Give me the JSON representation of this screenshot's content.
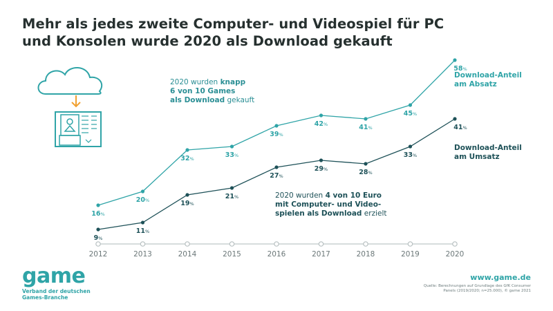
{
  "title": {
    "line1": "Mehr als jedes zweite Computer- und Videospiel für PC",
    "line2": "und Konsolen wurde 2020 als Download gekauft"
  },
  "notes": {
    "games": {
      "line1_pre": "2020 wurden ",
      "line1_bold": "knapp",
      "line2_bold": "6 von 10 Games",
      "line3_bold": "als Download",
      "line3_post": " gekauft"
    },
    "euro": {
      "line1_pre": "2020 wurden ",
      "line1_bold": "4 von 10 Euro",
      "line2_bold": "mit Computer- und Video-",
      "line3_bold": "spielen als Download",
      "line3_post": " erzielt"
    }
  },
  "series_labels": {
    "absatz": {
      "line1": "Download-Anteil",
      "line2": "am Absatz"
    },
    "umsatz": {
      "line1": "Download-Anteil",
      "line2": "am Umsatz"
    }
  },
  "colors": {
    "absatz": "#2fa4a7",
    "umsatz": "#1e5158",
    "axis": "#c9d0d1",
    "icon_teal": "#2fa4a7",
    "icon_orange": "#f0a030"
  },
  "icons": {
    "illustration": "cloud-download-game-case-icon"
  },
  "footer": {
    "logo": "game",
    "logo_sub_line1": "Verband der deutschen",
    "logo_sub_line2": "Games-Branche",
    "website": "www.game.de",
    "source_line1": "Quelle: Berechnungen auf Grundlage des GfK Consumer",
    "source_line2": "Panels (2019/2020; n=25.000), © game 2021"
  },
  "chart_data": {
    "type": "line",
    "x": [
      "2012",
      "2013",
      "2014",
      "2015",
      "2016",
      "2017",
      "2018",
      "2019",
      "2020"
    ],
    "series": [
      {
        "name": "Download-Anteil am Absatz",
        "values": [
          16,
          20,
          32,
          33,
          39,
          42,
          41,
          45,
          58
        ],
        "labels": [
          "16%",
          "20%",
          "32%",
          "33%",
          "39%",
          "42%",
          "41%",
          "45%",
          "58%"
        ]
      },
      {
        "name": "Download-Anteil am Umsatz",
        "values": [
          9,
          11,
          19,
          21,
          27,
          29,
          28,
          33,
          41
        ],
        "labels": [
          "9%",
          "11%",
          "19%",
          "21%",
          "27%",
          "29%",
          "28%",
          "33%",
          "41%"
        ]
      }
    ],
    "ylabel": "",
    "xlabel": "",
    "grid": false
  }
}
